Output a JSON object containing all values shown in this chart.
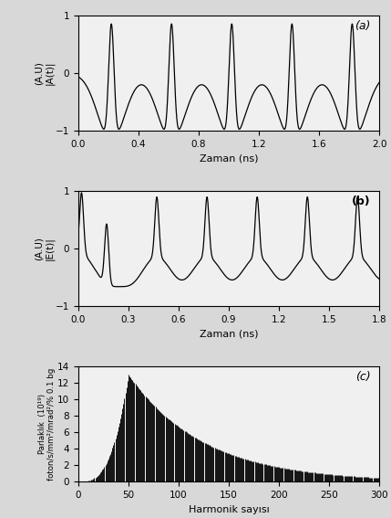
{
  "panel_a": {
    "label": "(a)",
    "ylabel_line1": "(A.U)",
    "ylabel_line2": "|A(t)|",
    "xlabel": "Zaman (ns)",
    "xlim": [
      0,
      2
    ],
    "ylim": [
      -1,
      1
    ],
    "xticks": [
      0,
      0.4,
      0.8,
      1.2,
      1.6,
      2
    ],
    "yticks": [
      -1,
      0,
      1
    ],
    "pulse_centers": [
      0.22,
      0.62,
      1.02,
      1.42,
      1.82
    ]
  },
  "panel_b": {
    "label": "(b)",
    "ylabel_line1": "(A.U)",
    "ylabel_line2": "|E(t)|",
    "xlabel": "Zaman (ns)",
    "xlim": [
      0,
      1.8
    ],
    "ylim": [
      -1,
      1
    ],
    "xticks": [
      0,
      0.3,
      0.6,
      0.9,
      1.2,
      1.5,
      1.8
    ],
    "yticks": [
      -1,
      0,
      1
    ],
    "pulse_centers": [
      0.03,
      0.18,
      0.48,
      0.78,
      1.08,
      1.38,
      1.68
    ]
  },
  "panel_c": {
    "label": "(c)",
    "ylabel_line1": "Parlaklık  (10¹⁹)",
    "ylabel_line2": "foton/s/mm²/mrad²/% 0.1 bg",
    "xlabel": "Harmonik sayısı",
    "xlim": [
      0,
      300
    ],
    "ylim": [
      0,
      14
    ],
    "xticks": [
      0,
      50,
      100,
      150,
      200,
      250,
      300
    ],
    "yticks": [
      0,
      2,
      4,
      6,
      8,
      10,
      12,
      14
    ],
    "peak_harmonic": 50,
    "peak_value": 13.0
  },
  "line_color": "#000000",
  "bg_color": "#f0f0f0",
  "linewidth": 0.9
}
